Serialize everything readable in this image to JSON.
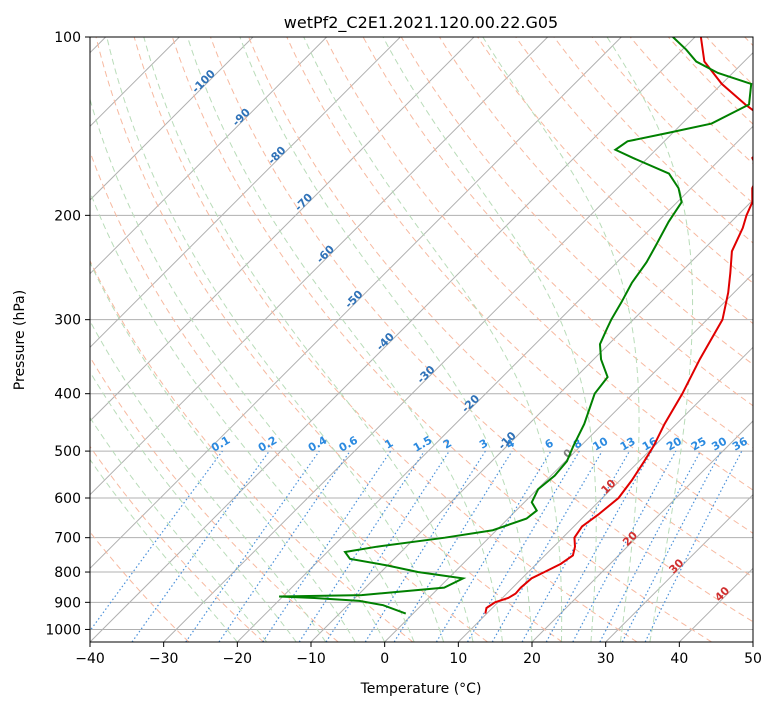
{
  "chart_data": {
    "type": "line",
    "title": "wetPf2_C2E1.2021.120.00.22.G05",
    "xlabel": "Temperature (°C)",
    "ylabel": "Pressure (hPa)",
    "xlim": [
      -40,
      50
    ],
    "ylim": [
      1050,
      100
    ],
    "y_scale": "log",
    "x_ticks": [
      "−40",
      "−30",
      "−20",
      "−10",
      "0",
      "10",
      "20",
      "30",
      "40",
      "50"
    ],
    "y_ticks": [
      1000,
      900,
      800,
      700,
      600,
      500,
      400,
      300,
      200,
      100
    ],
    "grid": true,
    "skew": 45,
    "series": [
      {
        "name": "",
        "role": "temperature",
        "color": "#e00000",
        "points": [
          [
            940,
            9.8
          ],
          [
            920,
            9.2
          ],
          [
            900,
            9.6
          ],
          [
            885,
            10.8
          ],
          [
            870,
            11.2
          ],
          [
            850,
            11.1
          ],
          [
            820,
            11.3
          ],
          [
            800,
            12.2
          ],
          [
            775,
            13.3
          ],
          [
            750,
            13.8
          ],
          [
            725,
            12.9
          ],
          [
            700,
            11.6
          ],
          [
            670,
            11.1
          ],
          [
            640,
            11.7
          ],
          [
            600,
            12.2
          ],
          [
            560,
            11.6
          ],
          [
            520,
            10.7
          ],
          [
            490,
            9.9
          ],
          [
            450,
            8.4
          ],
          [
            400,
            6.7
          ],
          [
            350,
            4.4
          ],
          [
            300,
            2.1
          ],
          [
            270,
            -0.8
          ],
          [
            250,
            -3.2
          ],
          [
            230,
            -5.9
          ],
          [
            210,
            -7.6
          ],
          [
            200,
            -8.8
          ],
          [
            190,
            -9.8
          ],
          [
            180,
            -11.7
          ],
          [
            170,
            -12.8
          ],
          [
            160,
            -15.8
          ],
          [
            150,
            -15.9
          ],
          [
            140,
            -18.0
          ],
          [
            130,
            -24.0
          ],
          [
            120,
            -30.0
          ],
          [
            110,
            -35.4
          ],
          [
            100,
            -39.2
          ]
        ]
      },
      {
        "name": "",
        "role": "dewpoint",
        "color": "#008000",
        "points": [
          [
            940,
            -1.0
          ],
          [
            910,
            -5.2
          ],
          [
            895,
            -9.0
          ],
          [
            885,
            -15.5
          ],
          [
            880,
            -20.5
          ],
          [
            875,
            -9.5
          ],
          [
            850,
            0.7
          ],
          [
            820,
            2.0
          ],
          [
            800,
            -5.0
          ],
          [
            780,
            -10.0
          ],
          [
            760,
            -16.0
          ],
          [
            740,
            -17.6
          ],
          [
            725,
            -14.0
          ],
          [
            700,
            -6.0
          ],
          [
            680,
            -0.5
          ],
          [
            650,
            2.5
          ],
          [
            630,
            2.8
          ],
          [
            610,
            1.0
          ],
          [
            580,
            0.1
          ],
          [
            550,
            0.5
          ],
          [
            520,
            0.2
          ],
          [
            490,
            -1.0
          ],
          [
            450,
            -2.5
          ],
          [
            400,
            -5.2
          ],
          [
            375,
            -5.7
          ],
          [
            350,
            -9.0
          ],
          [
            330,
            -11.2
          ],
          [
            310,
            -12.4
          ],
          [
            300,
            -13.0
          ],
          [
            280,
            -14.0
          ],
          [
            260,
            -15.2
          ],
          [
            240,
            -16.0
          ],
          [
            225,
            -17.0
          ],
          [
            205,
            -18.5
          ],
          [
            190,
            -19.4
          ],
          [
            180,
            -21.7
          ],
          [
            170,
            -25.0
          ],
          [
            160,
            -32.0
          ],
          [
            155,
            -35.5
          ],
          [
            150,
            -35.0
          ],
          [
            145,
            -30.5
          ],
          [
            140,
            -26.0
          ],
          [
            130,
            -23.5
          ],
          [
            120,
            -26.0
          ],
          [
            115,
            -32.0
          ],
          [
            110,
            -36.5
          ],
          [
            105,
            -39.5
          ],
          [
            100,
            -43.0
          ]
        ]
      }
    ],
    "isotherm_labels": [
      "-100",
      "-90",
      "-80",
      "-70",
      "-60",
      "-50",
      "-40",
      "-30",
      "-20",
      "-10",
      "0",
      "10",
      "20",
      "30",
      "40"
    ],
    "mixing_ratio_labels": [
      "0.1",
      "0.2",
      "0.4",
      "0.6",
      "1",
      "1.5",
      "2",
      "3",
      "4",
      "6",
      "8",
      "10",
      "13",
      "16",
      "20",
      "25",
      "30",
      "36"
    ]
  }
}
